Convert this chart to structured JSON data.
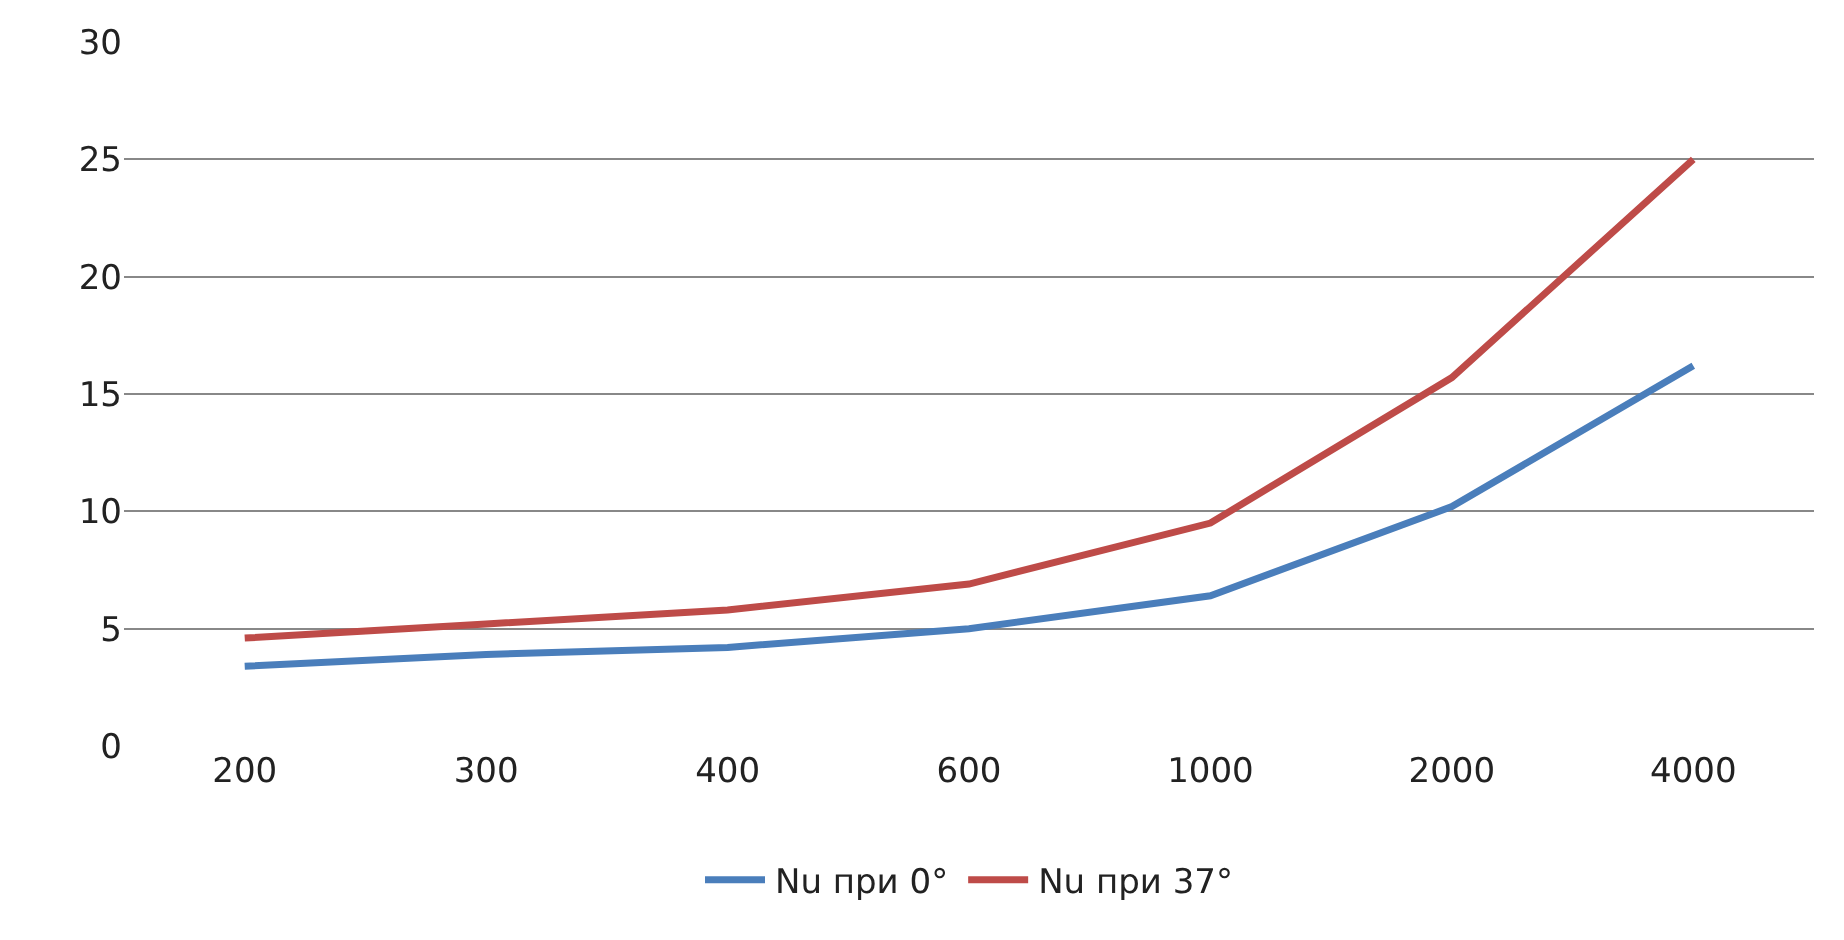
{
  "chart_data": {
    "type": "line",
    "categories": [
      "200",
      "300",
      "400",
      "600",
      "1000",
      "2000",
      "4000"
    ],
    "series": [
      {
        "name": "Nu при 0°",
        "color": "#4a7ebb",
        "values": [
          3.4,
          3.9,
          4.2,
          5.0,
          6.4,
          10.2,
          16.2
        ]
      },
      {
        "name": "Nu при 37°",
        "color": "#be4b48",
        "values": [
          4.6,
          5.2,
          5.8,
          6.9,
          9.5,
          15.7,
          25.0
        ]
      }
    ],
    "ylim": [
      0,
      30
    ],
    "yticks": [
      0,
      5,
      10,
      15,
      20,
      25,
      30
    ],
    "grid": "y",
    "legend": "bottom",
    "marker": "none",
    "line_style": "solid"
  }
}
